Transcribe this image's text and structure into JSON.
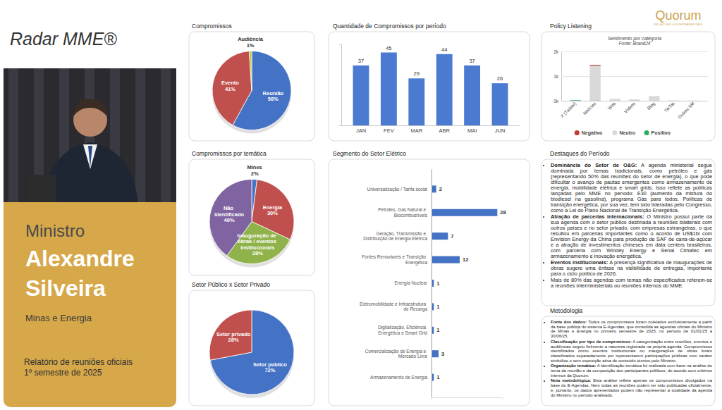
{
  "header": {
    "title": "Radar MME®",
    "logo": "Quorum",
    "logo_tagline": "RELAÇÕES GOVERNAMENTAIS"
  },
  "profile": {
    "role": "Ministro",
    "name": "Alexandre Silveira",
    "ministry": "Minas e Energia",
    "report_title": "Relatório de reuniões oficiais",
    "report_period": "1º semestre de 2025"
  },
  "chart_data": [
    {
      "type": "pie",
      "title": "Compromissos",
      "categories": [
        "Reunião",
        "Evento",
        "Audiência"
      ],
      "values": [
        58,
        41,
        1
      ],
      "value_labels": [
        "58%",
        "41%",
        "1%"
      ],
      "colors": [
        "#4472c4",
        "#c0504d",
        "#b5c93a"
      ],
      "data_labels": true
    },
    {
      "type": "bar",
      "title": "Quantidade de Compromissos por período",
      "categories": [
        "JAN",
        "FEV",
        "MAR",
        "ABR",
        "MAI",
        "JUN"
      ],
      "values": [
        37,
        45,
        29,
        44,
        37,
        26
      ],
      "color": "#4a7bd0",
      "ylim": [
        0,
        50
      ],
      "data_labels": true,
      "tick_labels": "x",
      "grid": false
    },
    {
      "type": "bar",
      "stacked": true,
      "title": "Policy Listening",
      "subtitle": "Sentimento por categoria",
      "annotations": [
        "Fonte: Brand24"
      ],
      "categories": [
        "X (Twitter)",
        "Notícias",
        "Web",
        "Vídeos",
        "Blog",
        "TikTok",
        "Outras SM"
      ],
      "series": [
        {
          "name": "Negativo",
          "color": "#c0392b",
          "values": [
            0,
            40,
            0,
            0,
            0,
            0,
            0
          ]
        },
        {
          "name": "Neutro",
          "color": "#d9d9d9",
          "values": [
            5,
            1410,
            80,
            55,
            190,
            15,
            10
          ]
        },
        {
          "name": "Positivo",
          "color": "#27ae60",
          "values": [
            20,
            5,
            0,
            0,
            0,
            0,
            0
          ]
        }
      ],
      "ylim": [
        0,
        2000
      ],
      "yticks": [
        {
          "value": 0,
          "label": "0k"
        },
        {
          "value": 1000,
          "label": "1k"
        },
        {
          "value": 2000,
          "label": "2k"
        }
      ],
      "grid": true,
      "legend": "bottom"
    },
    {
      "type": "pie",
      "title": "Compromissos por temática",
      "categories": [
        "Mines",
        "Energia",
        "Inauguração de obras / eventos institucionais",
        "Não identificado"
      ],
      "values": [
        2,
        30,
        28,
        40
      ],
      "value_labels": [
        "2%",
        "30%",
        "28%",
        "40%"
      ],
      "colors": [
        "#4472c4",
        "#c0504d",
        "#8fb34a",
        "#8064a2"
      ],
      "data_labels": true
    },
    {
      "type": "pie",
      "title": "Setor Público x Setor Privado",
      "categories": [
        "Setor público",
        "Setor privado"
      ],
      "values": [
        72,
        28
      ],
      "value_labels": [
        "72%",
        "28%"
      ],
      "colors": [
        "#4472c4",
        "#c0504d"
      ],
      "data_labels": true
    },
    {
      "type": "bar",
      "orientation": "horizontal",
      "title": "Segmento do Setor Elétrico",
      "categories": [
        "Universalização / Tarifa social",
        "Petróleo, Gás Natural e Biocombustíveis",
        "Geração, Transmissão e Distribuição de Energia Elétrica",
        "Fontes Renováveis e Transição Energética",
        "Energia Nuclear",
        "Eletromobilidade e Infraestrutura de Recarga",
        "Digitalização, Eficiência Energética e Smart Grid",
        "Comercialização de Energia e Mercado Livre",
        "Armazenamento de Energia"
      ],
      "values": [
        2,
        28,
        7,
        12,
        1,
        1,
        1,
        3,
        1
      ],
      "color": "#4472c4",
      "xlim": [
        0,
        30
      ],
      "data_labels": true,
      "tick_labels": "y",
      "grid": false
    }
  ],
  "highlights": {
    "title": "Destaques do Período",
    "items": [
      {
        "lead": "Dominância do Setor de O&G:",
        "text": "A agenda ministerial segue dominada por temas tradicionais, como petróleo e gás (representando 50% das reuniões do setor de energia), o que pode dificultar o avanço de pautas emergentes como armazenamento de energia, mobilidade elétrica e smart grids. Isso reflete as políticas lançadas pelo MME no período: E30 (aumento da mistura do biodiesel na gasolina), programa Gás para todos. Políticas de transição energética, por sua vez, tem sido lideradas pelo Congresso, como a Lei do Plano Nacional de Transição Energética."
      },
      {
        "lead": "Atração de parcerias internacionais:",
        "text": "O Ministro possui parte da sua agenda com o setor público destinada a reuniões bilaterais com outros países e no setor privado, com empresas estrangeiras, o que resultou em parcerias importantes como o acordo de US$1bi com Envision Energy da China para produção de SAF de cana-de-açúcar e a atração de investimentos chineses em data centers brasileiros, com parceria com Windey Energy e Senai Cimatec em armazenamento e inovação energética."
      },
      {
        "lead": "Eventos institucionais:",
        "text": "A presença significativa de inaugurações de obras sugere uma ênfase na visibilidade de entregas, importante para o ciclo político de 2026."
      },
      {
        "text": "Mais de 80% das agendas com temas não especificados referem-se a reuniões interministeriais ou reuniões internos do MME."
      }
    ]
  },
  "methodology": {
    "title": "Metodologia",
    "items": [
      {
        "lead": "Fonte dos dados:",
        "text": "Todos os compromissos foram coletados exclusivamente a partir da base pública do sistema E-Agendas, que consolida as agendas oficiais do Ministro de Minas e Energia no primeiro semestre de 2025, no período de 01/01/25 a 30/06/25."
      },
      {
        "lead": "Classificação por tipo de compromisso:",
        "text": "A categorização entre reuniões, eventos e audiências seguiu fielmente a natureza registrada na própria agenda. Compromissos identificados como eventos institucionais ou inaugurações de obras foram classificados separadamente por representarem participações públicas com caráter simbólico e sem exposição ativa de conteúdo técnico pelo Ministro."
      },
      {
        "lead": "Organização temática:",
        "text": "A identificação temática foi realizada com base na análise do tema da reunião e da composição dos participantes públicos, de acordo com critérios internos da Quorum."
      },
      {
        "lead": "Nota metodológica:",
        "text": "Esta análise reflete apenas os compromissos divulgados na base do E-Agendas. Nem todas as reuniões podem ter sido publicadas oficialmente, e, portanto, os dados apresentados podem não representar a totalidade da agenda do Ministro no período analisado."
      }
    ]
  }
}
